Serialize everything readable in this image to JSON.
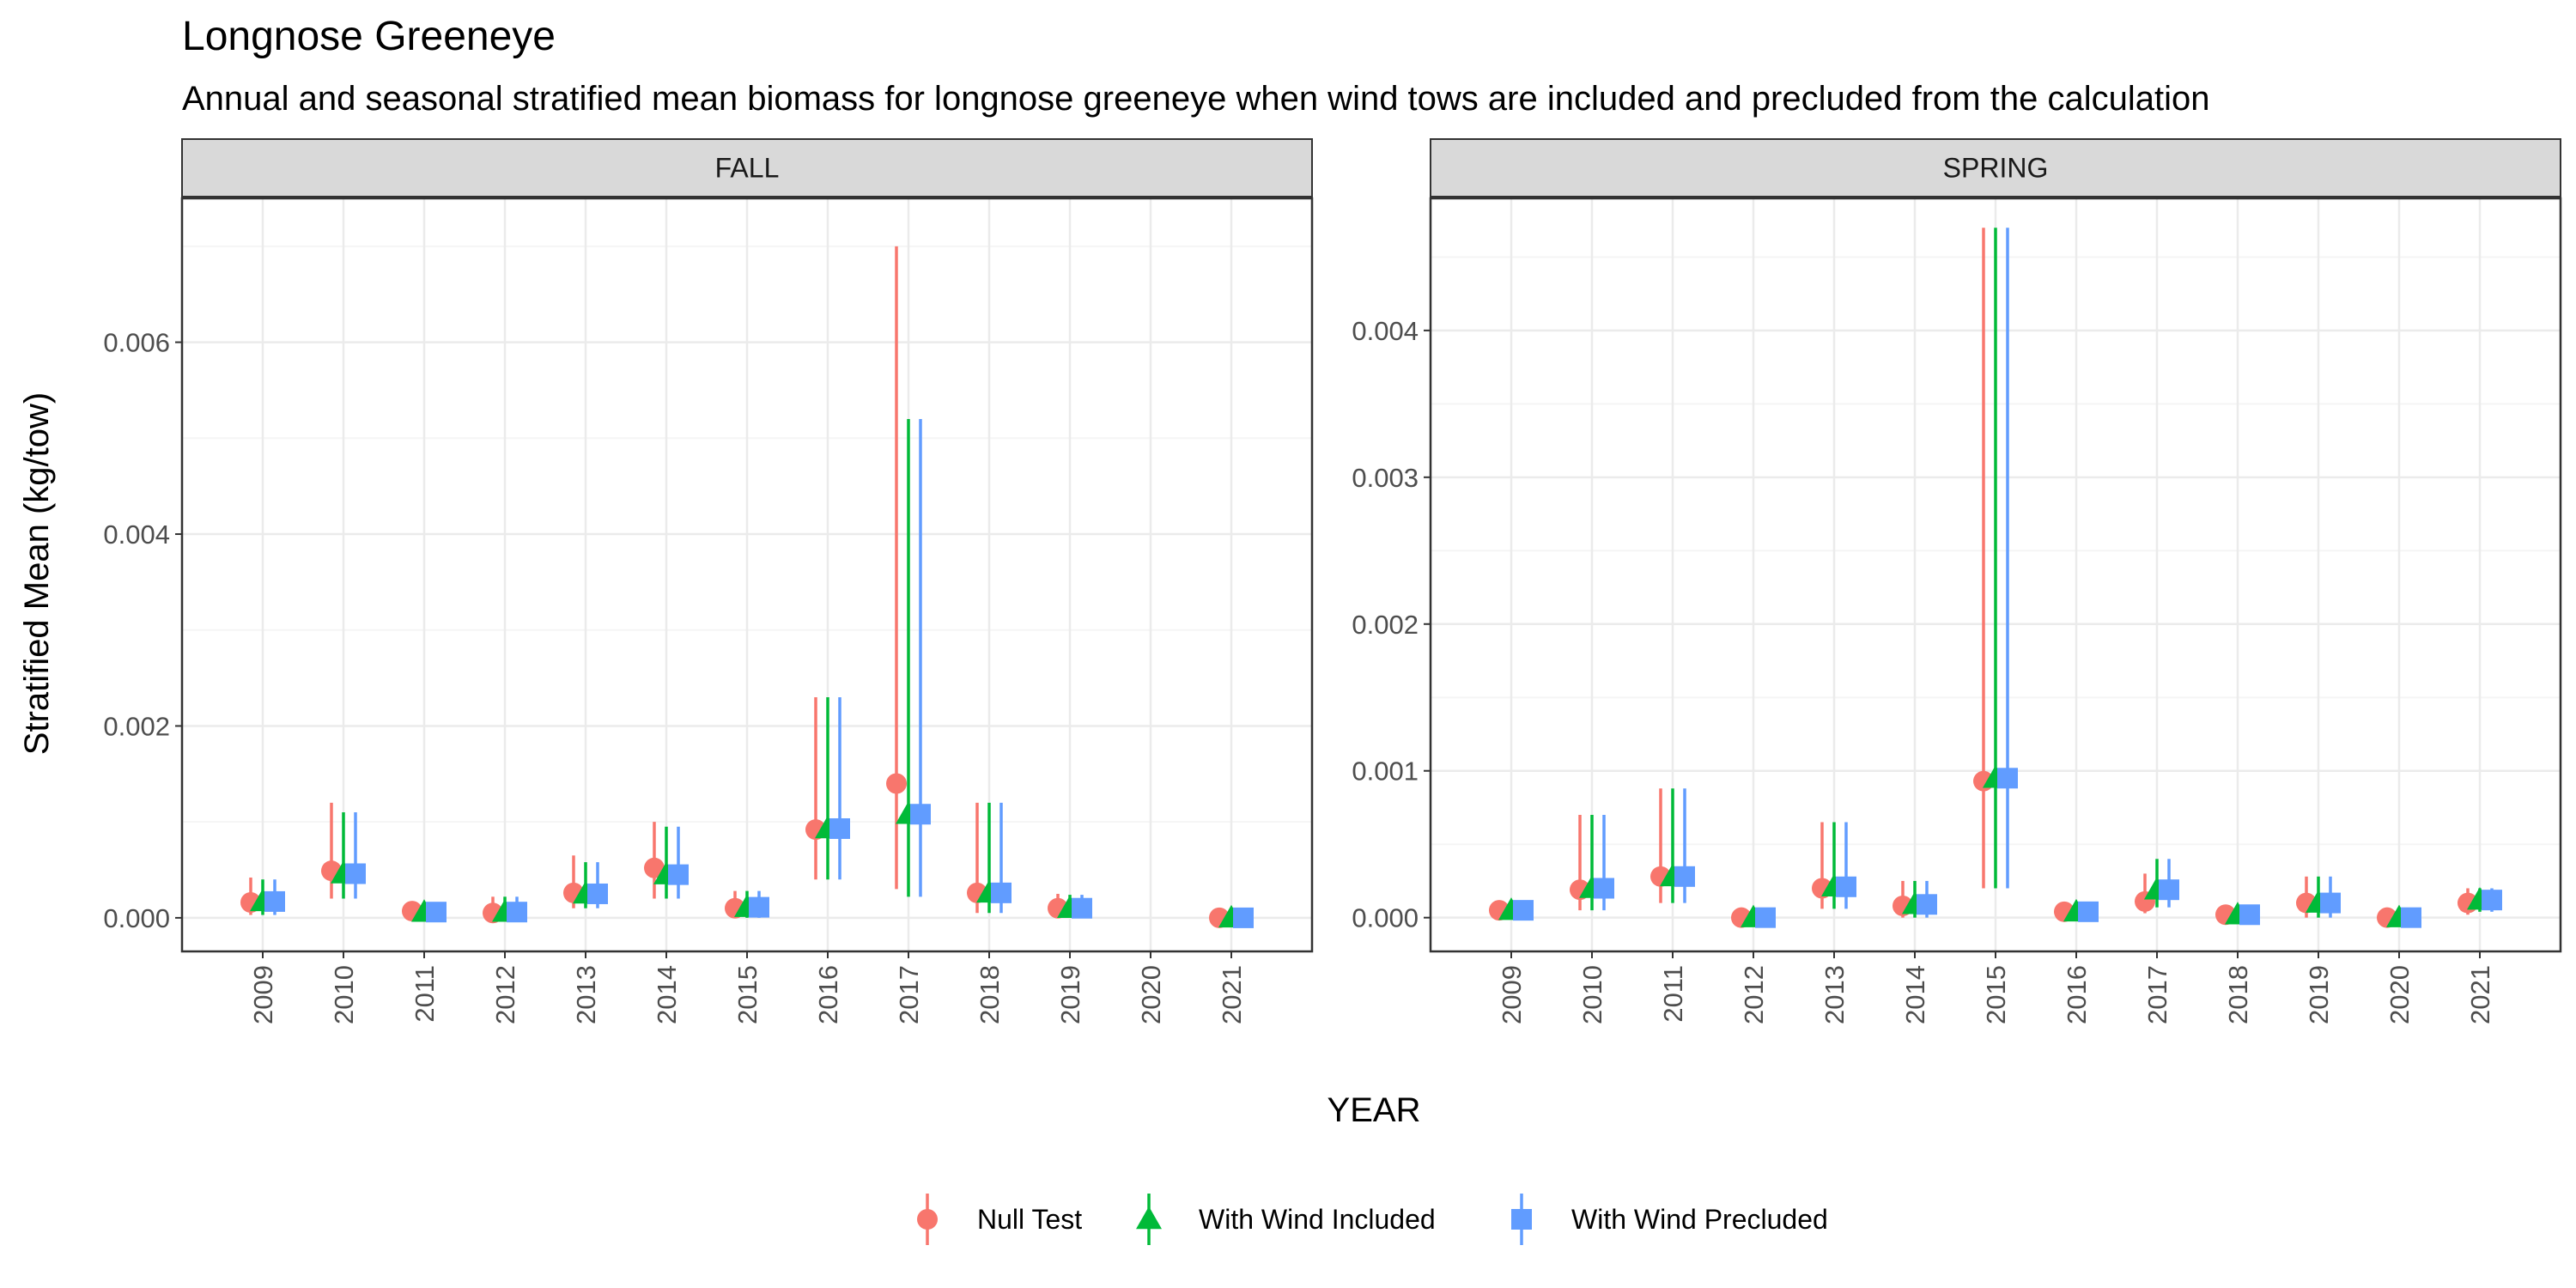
{
  "title": "Longnose Greeneye",
  "subtitle": "Annual and seasonal stratified mean biomass for longnose greeneye when wind tows are included and precluded from the calculation",
  "ylabel": "Stratified Mean (kg/tow)",
  "xlabel": "YEAR",
  "colors": {
    "null": "#F8766D",
    "included": "#00BA38",
    "precluded": "#619CFF",
    "strip_bg": "#D9D9D9",
    "grid_major": "#EBEBEB",
    "grid_minor": "#F5F5F5"
  },
  "legend": {
    "position": "bottom",
    "items": [
      {
        "label": "Null Test",
        "shape": "circle",
        "color_key": "null"
      },
      {
        "label": "With Wind Included",
        "shape": "triangle",
        "color_key": "included"
      },
      {
        "label": "With Wind Precluded",
        "shape": "square",
        "color_key": "precluded"
      }
    ]
  },
  "chart_data": [
    {
      "type": "scatter",
      "panel": "FALL",
      "x": [
        "2009",
        "2010",
        "2011",
        "2012",
        "2013",
        "2014",
        "2015",
        "2016",
        "2017",
        "2018",
        "2019",
        "2020",
        "2021"
      ],
      "ylim": [
        -0.00035,
        0.0075
      ],
      "yticks": [
        0.0,
        0.002,
        0.004,
        0.006
      ],
      "ytick_labels": [
        "0.000",
        "0.002",
        "0.004",
        "0.006"
      ],
      "grid": true,
      "series": [
        {
          "name": "Null Test",
          "color_key": "null",
          "shape": "circle",
          "values": [
            0.00016,
            0.00049,
            7e-05,
            5e-05,
            0.00026,
            0.00052,
            0.0001,
            0.00092,
            0.0014,
            0.00026,
            0.0001,
            null,
            0.0
          ],
          "lower": [
            3e-05,
            0.0002,
            1e-05,
            0.0,
            0.0001,
            0.0002,
            0.0,
            0.0004,
            0.0003,
            5e-05,
            0.0,
            null,
            0.0
          ],
          "upper": [
            0.00042,
            0.0012,
            0.00017,
            0.00022,
            0.00065,
            0.001,
            0.00028,
            0.0023,
            0.007,
            0.0012,
            0.00025,
            null,
            0.0
          ]
        },
        {
          "name": "With Wind Included",
          "color_key": "included",
          "shape": "triangle",
          "values": [
            0.00017,
            0.00046,
            6e-05,
            6e-05,
            0.00025,
            0.00045,
            0.00011,
            0.00093,
            0.00108,
            0.00026,
            0.0001,
            null,
            0.0
          ],
          "lower": [
            3e-05,
            0.0002,
            0.0,
            0.0,
            0.0001,
            0.0002,
            0.0,
            0.0004,
            0.00022,
            5e-05,
            0.0,
            null,
            0.0
          ],
          "upper": [
            0.0004,
            0.0011,
            0.00015,
            0.00022,
            0.00058,
            0.00095,
            0.00028,
            0.0023,
            0.0052,
            0.0012,
            0.00024,
            null,
            0.0
          ]
        },
        {
          "name": "With Wind Precluded",
          "color_key": "precluded",
          "shape": "square",
          "values": [
            0.00017,
            0.00046,
            6e-05,
            6e-05,
            0.00025,
            0.00045,
            0.00011,
            0.00093,
            0.00108,
            0.00026,
            0.0001,
            null,
            0.0
          ],
          "lower": [
            3e-05,
            0.0002,
            0.0,
            0.0,
            0.0001,
            0.0002,
            0.0,
            0.0004,
            0.00022,
            5e-05,
            0.0,
            null,
            0.0
          ],
          "upper": [
            0.0004,
            0.0011,
            0.00015,
            0.00022,
            0.00058,
            0.00095,
            0.00028,
            0.0023,
            0.0052,
            0.0012,
            0.00024,
            null,
            0.0
          ]
        }
      ]
    },
    {
      "type": "scatter",
      "panel": "SPRING",
      "x": [
        "2009",
        "2010",
        "2011",
        "2012",
        "2013",
        "2014",
        "2015",
        "2016",
        "2017",
        "2018",
        "2019",
        "2020",
        "2021"
      ],
      "ylim": [
        -0.00023,
        0.0049
      ],
      "yticks": [
        0.0,
        0.001,
        0.002,
        0.003,
        0.004
      ],
      "ytick_labels": [
        "0.000",
        "0.001",
        "0.002",
        "0.003",
        "0.004"
      ],
      "grid": true,
      "series": [
        {
          "name": "Null Test",
          "color_key": "null",
          "shape": "circle",
          "values": [
            5e-05,
            0.00019,
            0.00028,
            0.0,
            0.0002,
            8e-05,
            0.00093,
            4e-05,
            0.00011,
            2e-05,
            0.0001,
            0.0,
            0.0001
          ],
          "lower": [
            0.0,
            5e-05,
            0.0001,
            0.0,
            6e-05,
            0.0,
            0.0002,
            0.0,
            3e-05,
            0.0,
            0.0,
            0.0,
            2e-05
          ],
          "upper": [
            8e-05,
            0.0007,
            0.00088,
            3e-05,
            0.00065,
            0.00025,
            0.0047,
            9e-05,
            0.0003,
            5e-05,
            0.00028,
            3e-05,
            0.0002
          ]
        },
        {
          "name": "With Wind Included",
          "color_key": "included",
          "shape": "triangle",
          "values": [
            5e-05,
            0.0002,
            0.00028,
            0.0,
            0.00021,
            9e-05,
            0.00095,
            4e-05,
            0.00019,
            2e-05,
            0.0001,
            0.0,
            0.00012
          ],
          "lower": [
            0.0,
            5e-05,
            0.0001,
            0.0,
            6e-05,
            0.0,
            0.0002,
            0.0,
            7e-05,
            0.0,
            0.0,
            0.0,
            4e-05
          ],
          "upper": [
            9e-05,
            0.0007,
            0.00088,
            3e-05,
            0.00065,
            0.00025,
            0.0047,
            9e-05,
            0.0004,
            5e-05,
            0.00028,
            3e-05,
            0.0002
          ]
        },
        {
          "name": "With Wind Precluded",
          "color_key": "precluded",
          "shape": "square",
          "values": [
            5e-05,
            0.0002,
            0.00028,
            0.0,
            0.00021,
            9e-05,
            0.00095,
            4e-05,
            0.00019,
            2e-05,
            0.0001,
            0.0,
            0.00012
          ],
          "lower": [
            0.0,
            5e-05,
            0.0001,
            0.0,
            6e-05,
            0.0,
            0.0002,
            0.0,
            7e-05,
            0.0,
            0.0,
            0.0,
            4e-05
          ],
          "upper": [
            9e-05,
            0.0007,
            0.00088,
            3e-05,
            0.00065,
            0.00025,
            0.0047,
            9e-05,
            0.0004,
            5e-05,
            0.00028,
            3e-05,
            0.0002
          ]
        }
      ]
    }
  ]
}
